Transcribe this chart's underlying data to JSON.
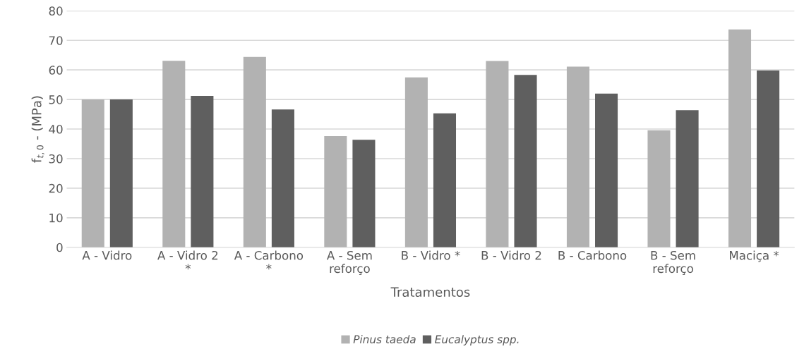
{
  "chart_data": {
    "type": "bar",
    "xlabel": "Tratamentos",
    "ylabel": "f$_{t,0}$ - (MPa)",
    "categories": [
      "A - Vidro",
      "A - Vidro 2 *",
      "A - Carbono *",
      "A - Sem reforço",
      "B - Vidro *",
      "B - Vidro 2",
      "B - Carbono",
      "B - Sem reforço",
      "Maciça *"
    ],
    "series": [
      {
        "name": "Pinus taeda",
        "color": "#b2b2b2",
        "values": [
          50.0,
          63.1,
          64.4,
          37.6,
          57.5,
          63.0,
          61.1,
          39.6,
          73.7
        ]
      },
      {
        "name": "Eucalyptus spp.",
        "color": "#5f5f5f",
        "values": [
          50.0,
          51.2,
          46.6,
          36.4,
          45.3,
          58.3,
          52.0,
          46.4,
          59.8
        ]
      }
    ],
    "ylim": [
      0,
      80
    ],
    "yticks": [
      0,
      10,
      20,
      30,
      40,
      50,
      60,
      70,
      80
    ],
    "grid": "y",
    "legend": "bottom"
  }
}
